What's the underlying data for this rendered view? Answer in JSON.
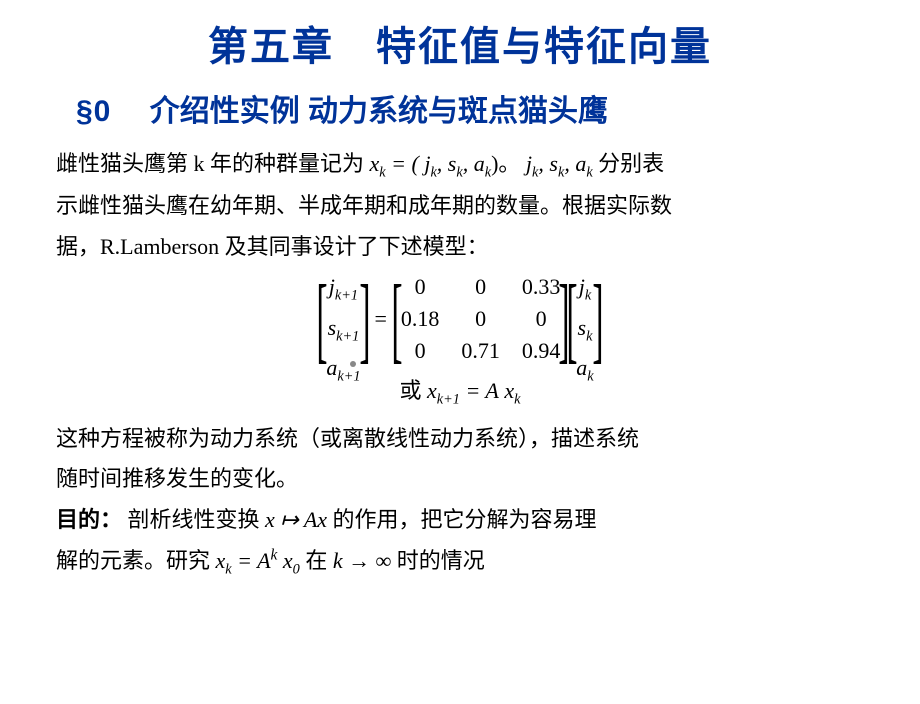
{
  "chapter_title": "第五章　特征值与特征向量",
  "section": {
    "number": "§0",
    "title": "介绍性实例 动力系统与斑点猫头鹰"
  },
  "para1": {
    "t1": "雌性猫头鹰第 k 年的种群量记为",
    "xk": "x",
    "xk_sub": "k",
    "eq": " = (",
    "j": "j",
    "j_sub": "k",
    "c1": ", ",
    "s": "s",
    "s_sub": "k",
    "c2": ", ",
    "a": "a",
    "a_sub": "k",
    "rp": ")。",
    "j2": "j",
    "j2_sub": "k",
    "c3": ", ",
    "s2": "s",
    "s2_sub": "k",
    "c4": ", ",
    "a2": "a",
    "a2_sub": "k",
    "t2": " 分别表",
    "t3": "示雌性猫头鹰在幼年期、半成年期和成年期的数量。根据实际数",
    "t4": "据，R.Lamberson 及其同事设计了下述模型："
  },
  "matrix": {
    "left_vec": {
      "r1": "j",
      "r1s": "k+1",
      "r2": "s",
      "r2s": "k+1",
      "r3": "a",
      "r3s": "k+1"
    },
    "A": [
      [
        "0",
        "0",
        "0.33"
      ],
      [
        "0.18",
        "0",
        "0"
      ],
      [
        "0",
        "0.71",
        "0.94"
      ]
    ],
    "right_vec": {
      "r1": "j",
      "r1s": "k",
      "r2": "s",
      "r2s": "k",
      "r3": "a",
      "r3s": "k"
    }
  },
  "or_line": {
    "pre": "或",
    "x": "x",
    "xs": "k+1",
    "eq": " = ",
    "A": "A",
    "x2": "x",
    "x2s": "k"
  },
  "para2": {
    "t1": "这种方程被称为动力系统（或离散线性动力系统），描述系统",
    "t2": "随时间推移发生的变化。"
  },
  "goal": {
    "label": "目的：",
    "t1": "剖析线性变换",
    "x": "x",
    "maps": " ↦ ",
    "Ax": "Ax",
    "t2": " 的作用，把它分解为容易理",
    "t3": "解的元素。研究",
    "xk": "x",
    "xks": "k",
    "eq": " = ",
    "Ak": "A",
    "ksup": "k",
    "x0": "x",
    "x0s": "0",
    "t4": " 在",
    "k": "k",
    "arrow": " → ∞",
    "t5": " 时的情况"
  },
  "colors": {
    "title": "#003399",
    "text": "#000000",
    "bg": "#ffffff"
  }
}
